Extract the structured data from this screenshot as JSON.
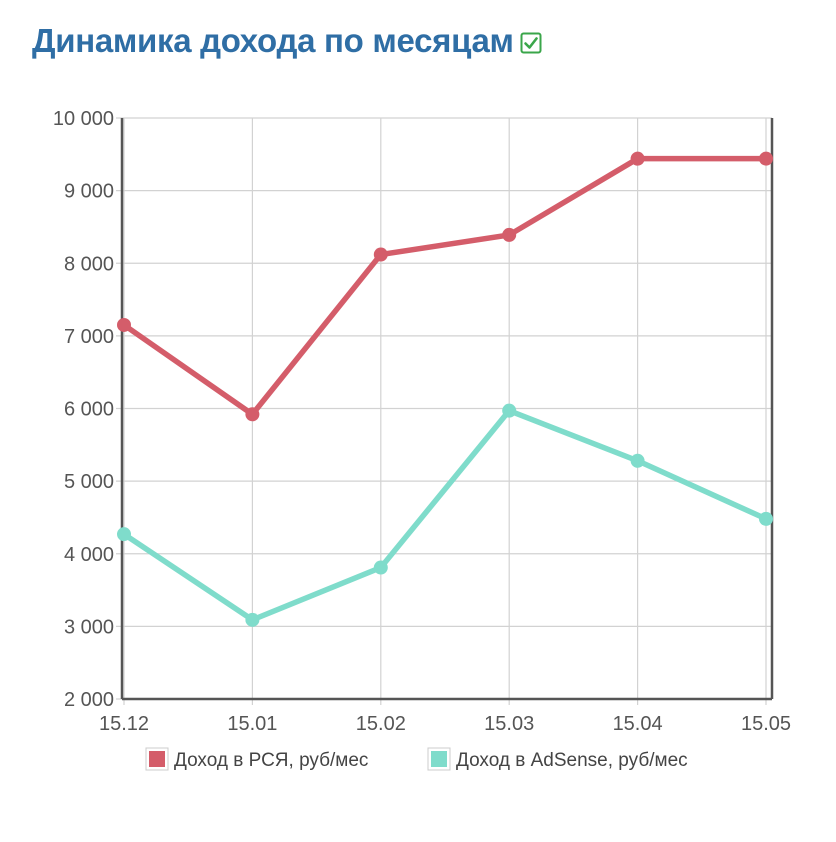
{
  "page": {
    "title": "Динамика дохода по месяцам",
    "title_icon": "checkbox-checked-icon",
    "title_color": "#2f6ea5",
    "check_color": "#3aa64a"
  },
  "chart_data": {
    "type": "line",
    "title": "Динамика дохода по месяцам",
    "categories": [
      "15.12",
      "15.01",
      "15.02",
      "15.03",
      "15.04",
      "15.05"
    ],
    "y_ticks": [
      "2 000",
      "3 000",
      "4 000",
      "5 000",
      "6 000",
      "7 000",
      "8 000",
      "9 000",
      "10 000"
    ],
    "ylim": [
      2000,
      10000
    ],
    "grid": true,
    "legend_position": "bottom",
    "series": [
      {
        "name": "Доход в РСЯ, руб/мес",
        "color": "#d45d6a",
        "values": [
          7150,
          5920,
          8120,
          8390,
          9440,
          9440
        ]
      },
      {
        "name": "Доход в AdSense, руб/мес",
        "color": "#7fdccb",
        "values": [
          4270,
          3090,
          3810,
          5970,
          5280,
          4480
        ]
      }
    ]
  }
}
